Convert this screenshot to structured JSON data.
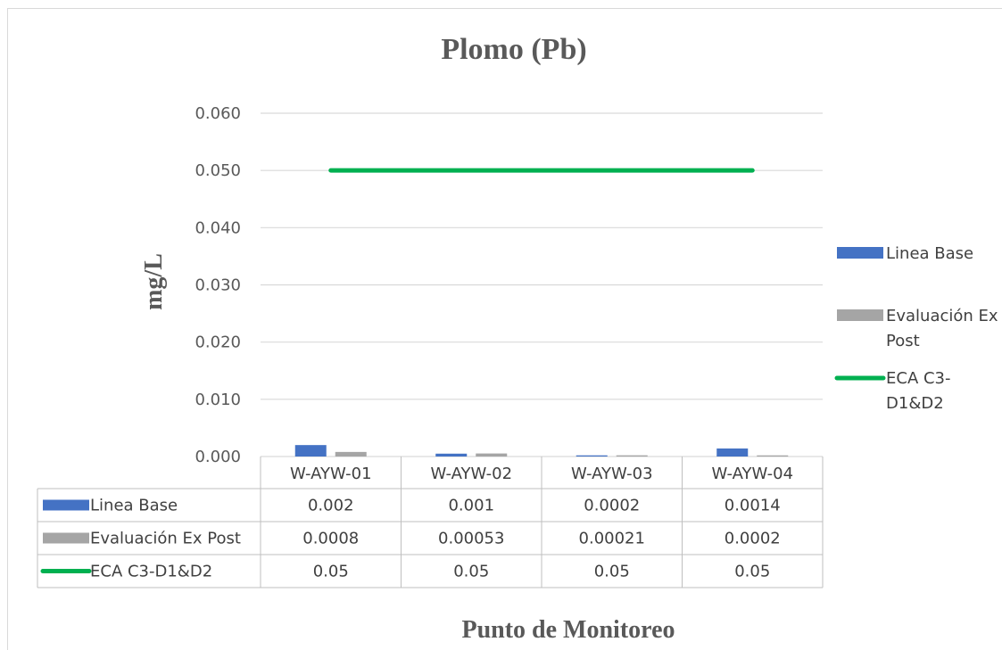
{
  "chart_data": {
    "type": "bar",
    "title": "Plomo (Pb)",
    "ylabel": "mg/L",
    "xlabel": "Punto de Monitoreo",
    "categories": [
      "W-AYW-01",
      "W-AYW-02",
      "W-AYW-03",
      "W-AYW-04"
    ],
    "ylim": [
      0,
      0.06
    ],
    "yticks": [
      "0.000",
      "0.010",
      "0.020",
      "0.030",
      "0.040",
      "0.050",
      "0.060"
    ],
    "grid": true,
    "legend_position": "right",
    "series": [
      {
        "name": "Linea Base",
        "type": "bar",
        "color": "#4472c4",
        "values": [
          0.002,
          0.0005,
          0.0002,
          0.0014
        ],
        "table_values": [
          "0.002",
          "0.001",
          "0.0002",
          "0.0014"
        ]
      },
      {
        "name": "Evaluación Ex Post",
        "type": "bar",
        "color": "#a5a5a5",
        "values": [
          0.0008,
          0.00053,
          0.00021,
          0.0002
        ],
        "table_values": [
          "0.0008",
          "0.00053",
          "0.00021",
          "0.0002"
        ]
      },
      {
        "name": "ECA C3-D1&D2",
        "type": "line",
        "color": "#00b050",
        "values": [
          0.05,
          0.05,
          0.05,
          0.05
        ],
        "table_values": [
          "0.05",
          "0.05",
          "0.05",
          "0.05"
        ]
      }
    ],
    "legend": {
      "items": [
        {
          "lines": [
            "Linea Base"
          ]
        },
        {
          "lines": [
            "Evaluación Ex",
            "Post"
          ]
        },
        {
          "lines": [
            "ECA C3-",
            "D1&D2"
          ]
        }
      ]
    }
  }
}
